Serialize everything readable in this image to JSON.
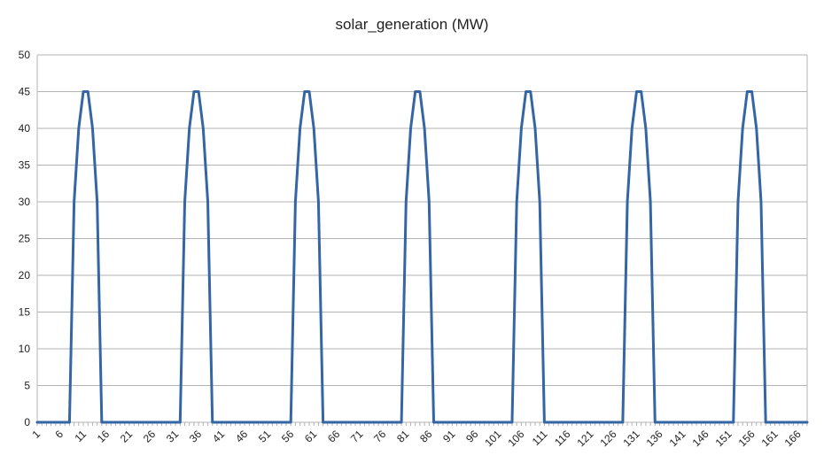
{
  "chart_data": {
    "type": "line",
    "title": "solar_generation (MW)",
    "xlabel": "",
    "ylabel": "",
    "x_range": [
      1,
      168
    ],
    "ylim": [
      0,
      50
    ],
    "y_ticks": [
      0,
      5,
      10,
      15,
      20,
      25,
      30,
      35,
      40,
      45,
      50
    ],
    "x_tick_labels": [
      1,
      6,
      11,
      16,
      21,
      26,
      31,
      36,
      41,
      46,
      51,
      56,
      61,
      66,
      71,
      76,
      81,
      86,
      91,
      96,
      101,
      106,
      111,
      116,
      121,
      126,
      131,
      136,
      141,
      146,
      151,
      156,
      161,
      166
    ],
    "grid": "horizontal",
    "legend": "none",
    "series": [
      {
        "color": "#3465a4",
        "values": [
          0,
          0,
          0,
          0,
          0,
          0,
          0,
          0,
          30,
          40,
          45,
          45,
          40,
          30,
          0,
          0,
          0,
          0,
          0,
          0,
          0,
          0,
          0,
          0,
          0,
          0,
          0,
          0,
          0,
          0,
          0,
          0,
          30,
          40,
          45,
          45,
          40,
          30,
          0,
          0,
          0,
          0,
          0,
          0,
          0,
          0,
          0,
          0,
          0,
          0,
          0,
          0,
          0,
          0,
          0,
          0,
          30,
          40,
          45,
          45,
          40,
          30,
          0,
          0,
          0,
          0,
          0,
          0,
          0,
          0,
          0,
          0,
          0,
          0,
          0,
          0,
          0,
          0,
          0,
          0,
          30,
          40,
          45,
          45,
          40,
          30,
          0,
          0,
          0,
          0,
          0,
          0,
          0,
          0,
          0,
          0,
          0,
          0,
          0,
          0,
          0,
          0,
          0,
          0,
          30,
          40,
          45,
          45,
          40,
          30,
          0,
          0,
          0,
          0,
          0,
          0,
          0,
          0,
          0,
          0,
          0,
          0,
          0,
          0,
          0,
          0,
          0,
          0,
          30,
          40,
          45,
          45,
          40,
          30,
          0,
          0,
          0,
          0,
          0,
          0,
          0,
          0,
          0,
          0,
          0,
          0,
          0,
          0,
          0,
          0,
          0,
          0,
          30,
          40,
          45,
          45,
          40,
          30,
          0,
          0,
          0,
          0,
          0,
          0,
          0,
          0,
          0,
          0
        ]
      }
    ]
  }
}
